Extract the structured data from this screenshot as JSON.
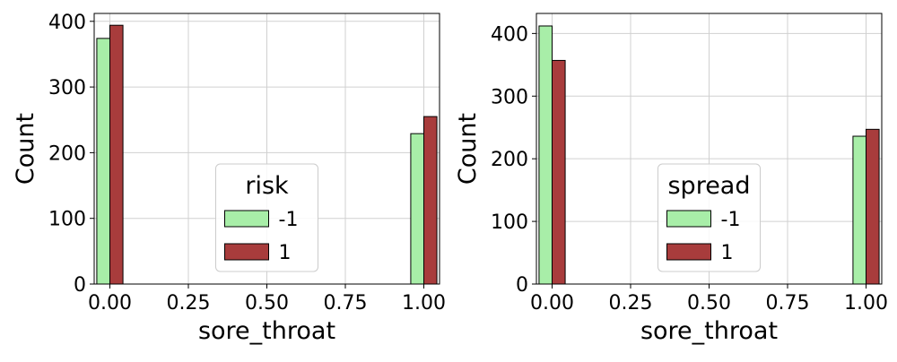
{
  "chart_data": [
    {
      "type": "bar",
      "xlabel": "sore_throat",
      "ylabel": "Count",
      "xlim": [
        -0.05,
        1.05
      ],
      "ylim": [
        0,
        412
      ],
      "xticks": [
        "0.00",
        "0.25",
        "0.50",
        "0.75",
        "1.00"
      ],
      "yticks": [
        "0",
        "100",
        "200",
        "300",
        "400"
      ],
      "grid": true,
      "legend": {
        "title": "risk",
        "placement": "lower-center"
      },
      "categories": [
        "0",
        "1"
      ],
      "series": [
        {
          "name": "-1",
          "color": "#a8eea8",
          "values": [
            374,
            229
          ]
        },
        {
          "name": "1",
          "color": "#a83c3c",
          "values": [
            394,
            255
          ]
        }
      ]
    },
    {
      "type": "bar",
      "xlabel": "sore_throat",
      "ylabel": "Count",
      "xlim": [
        -0.05,
        1.05
      ],
      "ylim": [
        0,
        432
      ],
      "xticks": [
        "0.00",
        "0.25",
        "0.50",
        "0.75",
        "1.00"
      ],
      "yticks": [
        "0",
        "100",
        "200",
        "300",
        "400"
      ],
      "grid": true,
      "legend": {
        "title": "spread",
        "placement": "lower-center"
      },
      "categories": [
        "0",
        "1"
      ],
      "series": [
        {
          "name": "-1",
          "color": "#a8eea8",
          "values": [
            412,
            236
          ]
        },
        {
          "name": "1",
          "color": "#a83c3c",
          "values": [
            357,
            247
          ]
        }
      ]
    }
  ]
}
